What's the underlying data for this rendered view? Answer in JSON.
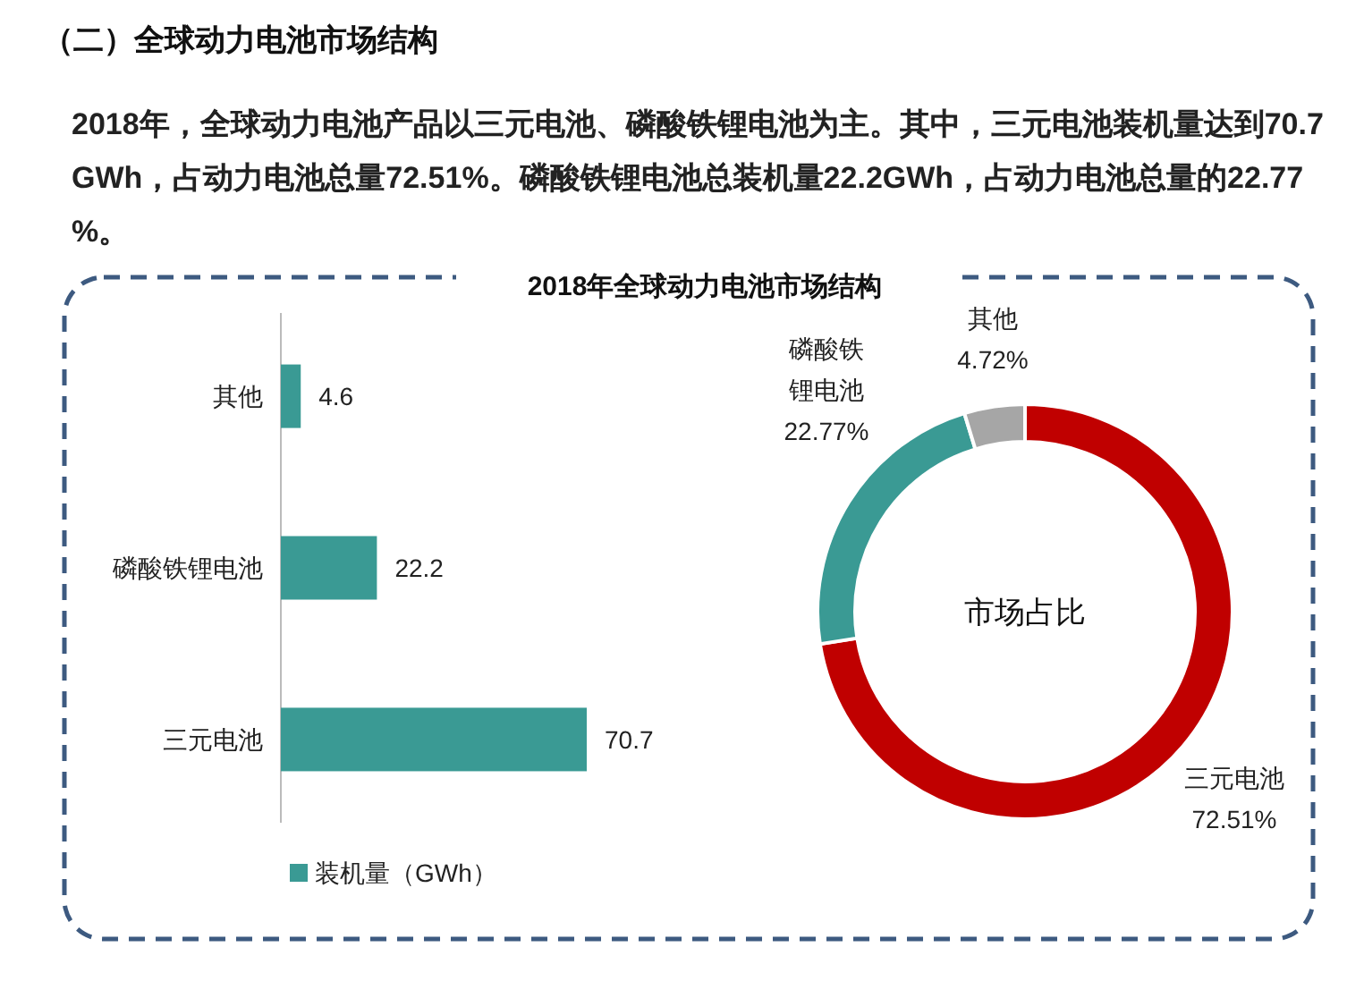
{
  "chart_data": [
    {
      "type": "other",
      "title": "（二）全球动力电池市场结构",
      "subtitle": "2018年，全球动力电池产品以三元电池、磷酸铁锂电池为主。其中，三元电池装机量达到70.7GWh，占动力电池总量72.51%。磷酸铁锂电池总装机量22.2GWh，占动力电池总量的22.77%。"
    },
    {
      "type": "bar",
      "title": "2018年全球动力电池市场结构",
      "orientation": "horizontal",
      "categories": [
        "其他",
        "磷酸铁锂电池",
        "三元电池"
      ],
      "series": [
        {
          "name": "装机量（GWh）",
          "color": "#3a9a94",
          "values": [
            4.6,
            22.2,
            70.7
          ]
        }
      ],
      "data_labels": true,
      "legend": "bottom"
    },
    {
      "type": "donut",
      "categories": [
        "三元电池",
        "磷酸铁锂电池",
        "其他"
      ],
      "values": [
        72.51,
        22.77,
        4.72
      ],
      "colors": [
        "#c00000",
        "#3a9a94",
        "#a6a6a6"
      ],
      "value_labels": [
        "72.51%",
        "22.77%",
        "4.72%"
      ],
      "annotations": [
        "市场占比"
      ]
    }
  ]
}
